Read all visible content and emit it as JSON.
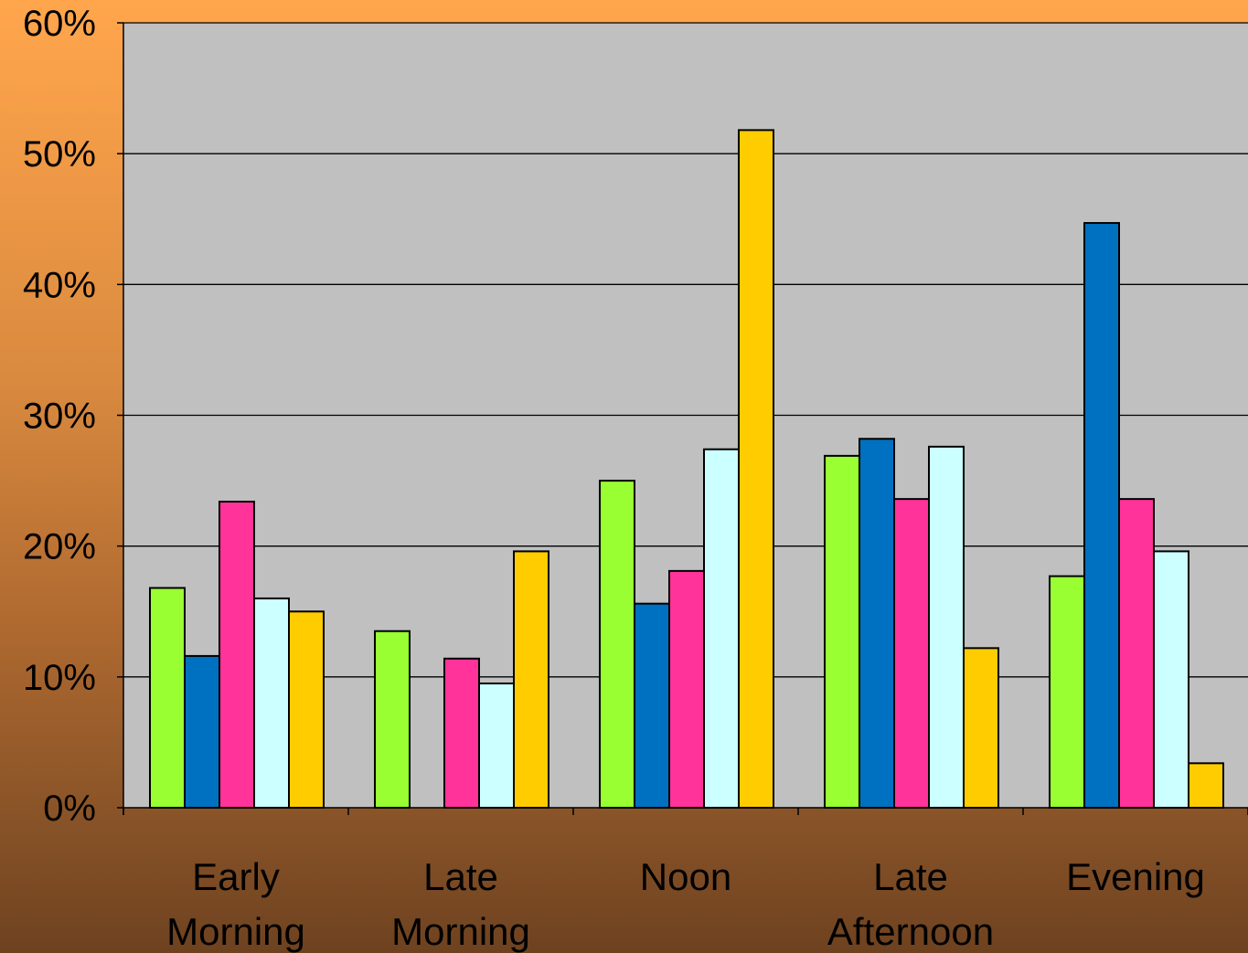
{
  "chart_data": {
    "type": "bar",
    "categories": [
      [
        "Early",
        "Morning"
      ],
      [
        "Late",
        "Morning"
      ],
      [
        "Noon"
      ],
      [
        "Late",
        "Afternoon"
      ],
      [
        "Evening"
      ]
    ],
    "y_ticks": [
      "0%",
      "10%",
      "20%",
      "30%",
      "40%",
      "50%",
      "60%"
    ],
    "ylim": [
      0,
      60
    ],
    "grid": true,
    "legend": "none",
    "series": [
      {
        "color": "#99ff33",
        "values": [
          16.8,
          13.5,
          25.0,
          26.9,
          17.7
        ]
      },
      {
        "color": "#0070c0",
        "values": [
          11.6,
          0,
          15.6,
          28.2,
          44.7
        ]
      },
      {
        "color": "#ff3399",
        "values": [
          23.4,
          11.4,
          18.1,
          23.6,
          23.6
        ]
      },
      {
        "color": "#ccffff",
        "values": [
          16.0,
          9.5,
          27.4,
          27.6,
          19.6
        ]
      },
      {
        "color": "#ffcc00",
        "values": [
          15.0,
          19.6,
          51.8,
          12.2,
          3.4
        ]
      }
    ],
    "colors": {
      "plot_background": "#c0c0c0",
      "gridline": "#000000",
      "bar_outline": "#000000"
    }
  }
}
